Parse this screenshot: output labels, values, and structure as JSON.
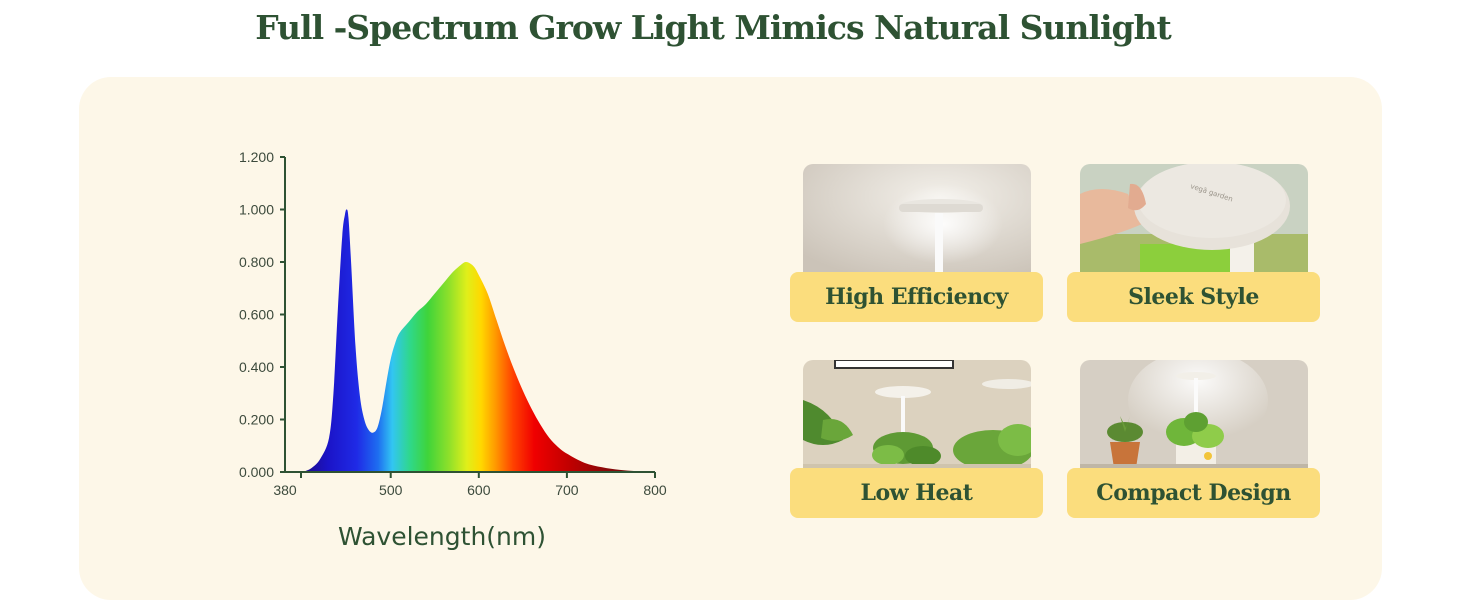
{
  "page": {
    "title": "Full -Spectrum Grow Light Mimics Natural Sunlight"
  },
  "chart_data": {
    "type": "area",
    "title": "",
    "xlabel": "Wavelength(nm)",
    "ylabel": "",
    "xlim": [
      380,
      800
    ],
    "ylim": [
      0,
      1.2
    ],
    "x_ticks": [
      "380",
      "500",
      "600",
      "700",
      "800"
    ],
    "x_tick_values": [
      380,
      500,
      600,
      700,
      800
    ],
    "y_ticks": [
      "0.000",
      "0.200",
      "0.400",
      "0.600",
      "0.800",
      "1.000",
      "1.200"
    ],
    "y_tick_values": [
      0,
      0.2,
      0.4,
      0.6,
      0.8,
      1.0,
      1.2
    ],
    "grid": false,
    "fill": "visible-spectrum gradient",
    "x": [
      400,
      410,
      420,
      430,
      435,
      440,
      445,
      448,
      450,
      452,
      455,
      460,
      465,
      470,
      475,
      480,
      485,
      490,
      495,
      500,
      505,
      510,
      520,
      530,
      540,
      550,
      560,
      570,
      580,
      585,
      590,
      595,
      600,
      610,
      620,
      630,
      640,
      650,
      660,
      670,
      680,
      690,
      700,
      720,
      740,
      760,
      780,
      800
    ],
    "y": [
      0.0,
      0.015,
      0.05,
      0.13,
      0.3,
      0.62,
      0.9,
      0.98,
      1.0,
      0.97,
      0.8,
      0.48,
      0.29,
      0.2,
      0.16,
      0.15,
      0.17,
      0.24,
      0.34,
      0.43,
      0.49,
      0.53,
      0.57,
      0.61,
      0.64,
      0.68,
      0.72,
      0.76,
      0.79,
      0.8,
      0.795,
      0.78,
      0.75,
      0.68,
      0.58,
      0.48,
      0.39,
      0.31,
      0.24,
      0.18,
      0.13,
      0.095,
      0.07,
      0.035,
      0.018,
      0.008,
      0.003,
      0.0
    ]
  },
  "colors": {
    "title": "#2e5233",
    "panel": "#fdf7e8",
    "badge": "#fbdd7d",
    "axis": "#2e5233"
  },
  "features": [
    {
      "label": "High Efficiency",
      "photo": "grow-light-lamp-on-white-wall"
    },
    {
      "label": "Sleek Style",
      "photo": "hand-holding-lamp-head"
    },
    {
      "label": "Low Heat",
      "photo": "lamp-over-plants"
    },
    {
      "label": "Compact Design",
      "photo": "lamp-over-potted-plants"
    }
  ]
}
